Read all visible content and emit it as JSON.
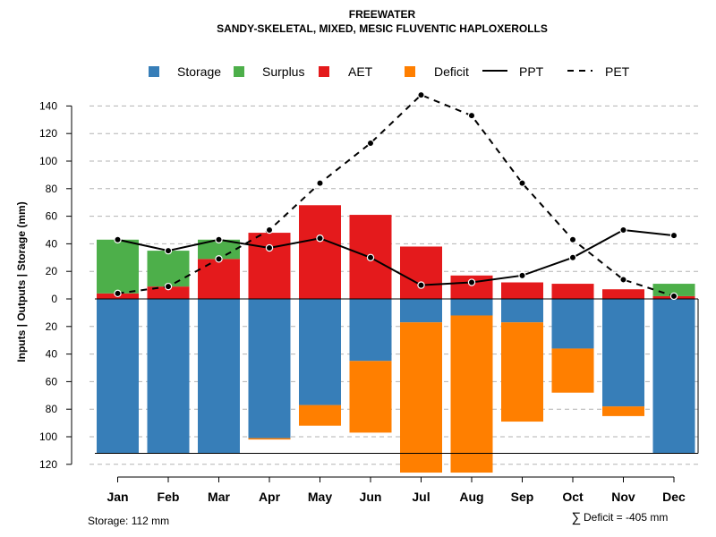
{
  "chart_data": {
    "type": "bar",
    "title": "FREEWATER",
    "subtitle": "SANDY-SKELETAL, MIXED, MESIC FLUVENTIC HAPLOXEROLLS",
    "ylabel": "Inputs | Outputs | Storage    (mm)",
    "ylim": [
      -120,
      150
    ],
    "yticks": [
      {
        "value": 140,
        "label": "140"
      },
      {
        "value": 120,
        "label": "120"
      },
      {
        "value": 100,
        "label": "100"
      },
      {
        "value": 80,
        "label": "80"
      },
      {
        "value": 60,
        "label": "60"
      },
      {
        "value": 40,
        "label": "40"
      },
      {
        "value": 20,
        "label": "20"
      },
      {
        "value": 0,
        "label": "0"
      },
      {
        "value": -20,
        "label": "20"
      },
      {
        "value": -40,
        "label": "40"
      },
      {
        "value": -60,
        "label": "60"
      },
      {
        "value": -80,
        "label": "80"
      },
      {
        "value": -100,
        "label": "100"
      },
      {
        "value": -120,
        "label": "120"
      }
    ],
    "categories": [
      "Jan",
      "Feb",
      "Mar",
      "Apr",
      "May",
      "Jun",
      "Jul",
      "Aug",
      "Sep",
      "Oct",
      "Nov",
      "Dec"
    ],
    "series": [
      {
        "name": "Storage",
        "color": "#377EB8",
        "values": [
          112,
          112,
          112,
          101,
          77,
          45,
          17,
          12,
          17,
          36,
          78,
          112
        ]
      },
      {
        "name": "Surplus",
        "color": "#4DAF4A",
        "values": [
          39,
          26,
          14,
          0,
          0,
          0,
          0,
          0,
          0,
          0,
          0,
          9
        ]
      },
      {
        "name": "AET",
        "color": "#E41A1C",
        "values": [
          4,
          9,
          29,
          48,
          68,
          61,
          38,
          17,
          12,
          11,
          7,
          2
        ]
      },
      {
        "name": "Deficit",
        "color": "#FF7F00",
        "values": [
          0,
          0,
          0,
          1,
          15,
          52,
          109,
          114,
          72,
          32,
          7,
          0
        ]
      },
      {
        "name": "PPT",
        "color": "#000000",
        "line": "solid",
        "values": [
          43,
          35,
          43,
          37,
          44,
          30,
          10,
          12,
          17,
          30,
          50,
          46
        ]
      },
      {
        "name": "PET",
        "color": "#000000",
        "line": "dashed",
        "values": [
          4,
          9,
          29,
          50,
          84,
          113,
          148,
          133,
          84,
          43,
          14,
          2
        ]
      }
    ],
    "storage_capacity": 112,
    "grid": true,
    "legend_position": "top"
  },
  "footer": {
    "storage_text": "Storage: 112 mm",
    "deficit_symbol": "∑",
    "deficit_text": "Deficit = -405 mm"
  }
}
